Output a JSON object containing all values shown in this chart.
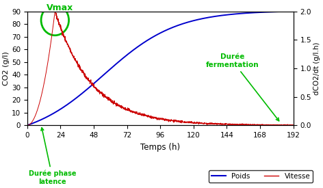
{
  "xlabel": "Temps (h)",
  "ylabel_left": "CO2 (g/l)",
  "ylabel_right": "dCO2/dt (g/l.h)",
  "x_ticks": [
    0,
    24,
    48,
    72,
    96,
    120,
    144,
    168,
    192
  ],
  "x_max": 192,
  "yleft_max": 90,
  "yleft_ticks": [
    0,
    10,
    20,
    30,
    40,
    50,
    60,
    70,
    80,
    90
  ],
  "yright_max": 2.0,
  "yright_ticks": [
    0,
    0.5,
    1.0,
    1.5,
    2.0
  ],
  "blue_color": "#0000cc",
  "red_color": "#cc0000",
  "green_color": "#00bb00",
  "legend_labels": [
    "Poids",
    "Vitesse"
  ],
  "vmax_label": "Vmax",
  "fermentation_label": "Durée\nfermentation",
  "latence_label": "Durée phase\nlatence",
  "blue_L": 90.0,
  "blue_k": 0.038,
  "blue_t0": 55,
  "red_peak_t": 20,
  "red_peak_val": 2.0,
  "red_decay": 0.038,
  "noise_std": 0.022
}
